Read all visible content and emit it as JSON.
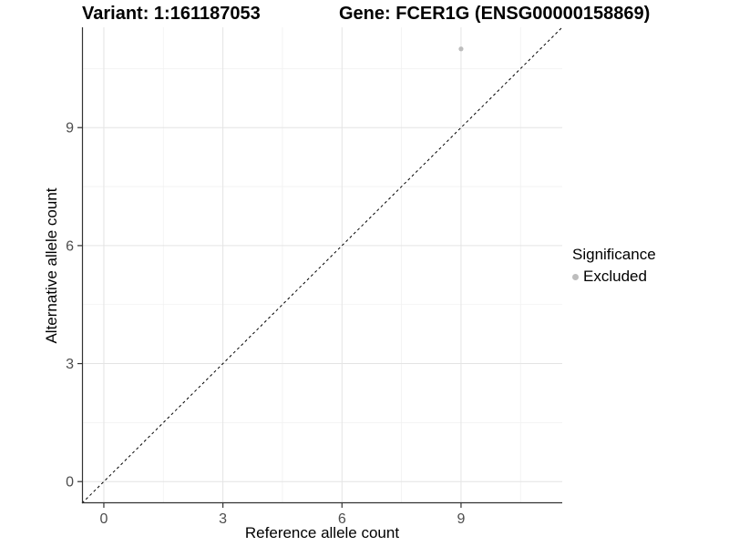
{
  "chart_data": {
    "type": "scatter",
    "title_left": "Variant: 1:161187053",
    "title_right": "Gene: FCER1G (ENSG00000158869)",
    "xlabel": "Reference allele count",
    "ylabel": "Alternative allele count",
    "xlim": [
      -0.55,
      11.55
    ],
    "ylim": [
      -0.55,
      11.55
    ],
    "x_ticks": [
      0,
      3,
      6,
      9
    ],
    "y_ticks": [
      0,
      3,
      6,
      9
    ],
    "x_minor_ticks": [
      1.5,
      4.5,
      7.5,
      10.5
    ],
    "y_minor_ticks": [
      1.5,
      4.5,
      7.5,
      10.5
    ],
    "grid": "major+minor",
    "legend_position": "right",
    "points": [
      {
        "x": 9,
        "y": 11,
        "significance": "Excluded",
        "color": "#bdbdbd"
      }
    ],
    "reference_line": {
      "kind": "identity y=x",
      "style": "dashed",
      "color": "#000000"
    },
    "legend": {
      "title": "Significance",
      "entries": [
        {
          "label": "Excluded",
          "color": "#bdbdbd"
        }
      ]
    }
  },
  "colors": {
    "background": "#ffffff",
    "point": "#bdbdbd",
    "axis_line": "#333333",
    "tick_mark": "#333333",
    "tick_label": "#4d4d4d",
    "grid_major": "#e4e4e4",
    "grid_minor": "#f1f1f1",
    "identity_line": "#000000"
  }
}
